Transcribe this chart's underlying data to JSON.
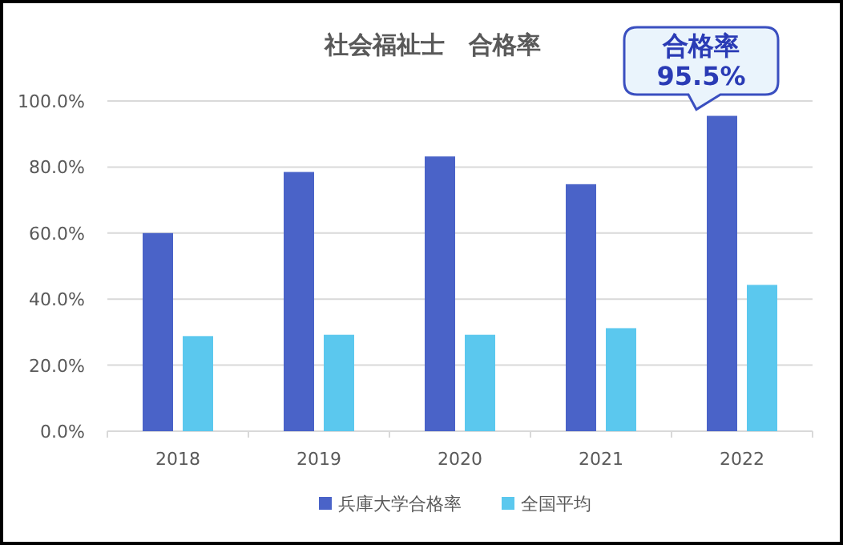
{
  "chart_data": {
    "type": "bar",
    "title": "社会福祉士　合格率",
    "categories": [
      "2018",
      "2019",
      "2020",
      "2021",
      "2022"
    ],
    "series": [
      {
        "name": "兵庫大学合格率",
        "color": "#4a63c8",
        "values": [
          60.0,
          78.5,
          83.2,
          74.8,
          95.5
        ]
      },
      {
        "name": "全国平均",
        "color": "#5bc8ee",
        "values": [
          28.8,
          29.2,
          29.2,
          31.2,
          44.3
        ]
      }
    ],
    "ylim": [
      0,
      100
    ],
    "yticks": [
      {
        "value": 0,
        "label": "0.0%"
      },
      {
        "value": 20,
        "label": "20.0%"
      },
      {
        "value": 40,
        "label": "40.0%"
      },
      {
        "value": 60,
        "label": "60.0%"
      },
      {
        "value": 80,
        "label": "80.0%"
      },
      {
        "value": 100,
        "label": "100.0%"
      }
    ],
    "grid": "y",
    "legend": "bottom",
    "annotations": [
      {
        "text": "合格率\n95.5%",
        "x": "2022",
        "y": 95.5
      }
    ]
  }
}
